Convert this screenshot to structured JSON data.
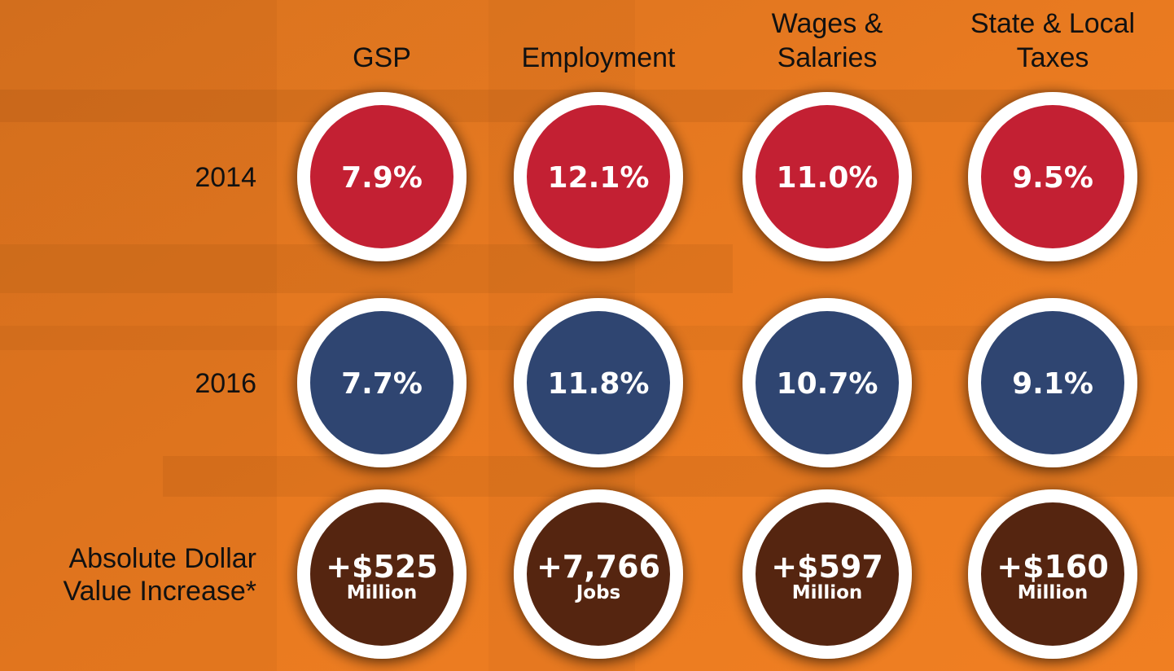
{
  "columns": [
    {
      "lines": [
        "GSP"
      ]
    },
    {
      "lines": [
        "Employment"
      ]
    },
    {
      "lines": [
        "Wages &",
        "Salaries"
      ]
    },
    {
      "lines": [
        "State & Local",
        "Taxes"
      ]
    }
  ],
  "rows": [
    {
      "lines": [
        "2014"
      ],
      "color": "#c32033",
      "cells": [
        {
          "value": "7.9%"
        },
        {
          "value": "12.1%"
        },
        {
          "value": "11.0%"
        },
        {
          "value": "9.5%"
        }
      ]
    },
    {
      "lines": [
        "2016"
      ],
      "color": "#2f4571",
      "cells": [
        {
          "value": "7.7%"
        },
        {
          "value": "11.8%"
        },
        {
          "value": "10.7%"
        },
        {
          "value": "9.1%"
        }
      ]
    },
    {
      "lines": [
        "Absolute Dollar",
        "Value Increase*"
      ],
      "color": "#552510",
      "cells": [
        {
          "value": "+$525",
          "unit": "Million"
        },
        {
          "value": "+7,766",
          "unit": "Jobs"
        },
        {
          "value": "+$597",
          "unit": "Million"
        },
        {
          "value": "+$160",
          "unit": "Million"
        }
      ]
    }
  ]
}
